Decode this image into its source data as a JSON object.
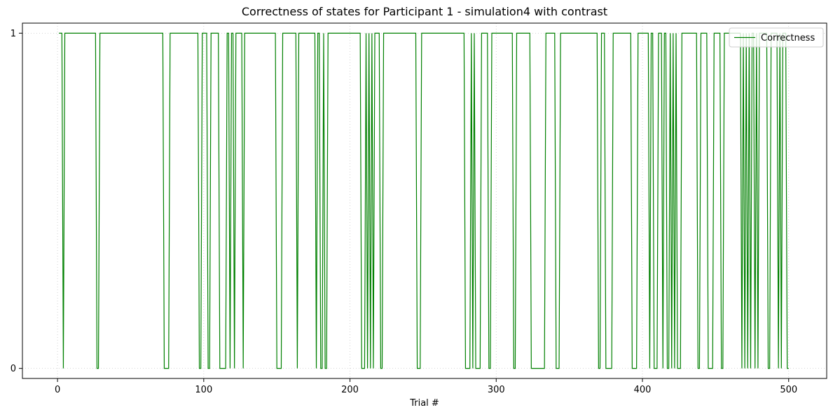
{
  "chart_data": {
    "type": "line",
    "title": "Correctness of states for Participant 1 - simulation4 with contrast",
    "xlabel": "Trial #",
    "ylabel": "",
    "xlim": [
      -24,
      526
    ],
    "ylim": [
      -0.03,
      1.03
    ],
    "x_ticks": [
      0,
      100,
      200,
      300,
      400,
      500
    ],
    "y_ticks": [
      0,
      1
    ],
    "grid": true,
    "grid_style": "dotted",
    "legend_position": "top-right",
    "series": [
      {
        "name": "Correctness",
        "color": "#008000",
        "step_changes": [
          [
            1,
            1
          ],
          [
            4,
            0
          ],
          [
            5,
            1
          ],
          [
            27,
            0
          ],
          [
            29,
            1
          ],
          [
            73,
            0
          ],
          [
            77,
            1
          ],
          [
            97,
            0
          ],
          [
            99,
            1
          ],
          [
            103,
            0
          ],
          [
            105,
            1
          ],
          [
            111,
            0
          ],
          [
            116,
            1
          ],
          [
            118,
            0
          ],
          [
            119,
            1
          ],
          [
            121,
            0
          ],
          [
            122,
            1
          ],
          [
            127,
            0
          ],
          [
            128,
            1
          ],
          [
            150,
            0
          ],
          [
            154,
            1
          ],
          [
            164,
            0
          ],
          [
            165,
            1
          ],
          [
            177,
            0
          ],
          [
            178,
            1
          ],
          [
            180,
            0
          ],
          [
            182,
            1
          ],
          [
            183,
            0
          ],
          [
            185,
            1
          ],
          [
            208,
            0
          ],
          [
            211,
            1
          ],
          [
            212,
            0
          ],
          [
            213,
            1
          ],
          [
            214,
            0
          ],
          [
            215,
            1
          ],
          [
            216,
            0
          ],
          [
            217,
            1
          ],
          [
            221,
            0
          ],
          [
            223,
            1
          ],
          [
            246,
            0
          ],
          [
            249,
            1
          ],
          [
            279,
            0
          ],
          [
            283,
            1
          ],
          [
            284,
            0
          ],
          [
            285,
            1
          ],
          [
            286,
            0
          ],
          [
            290,
            1
          ],
          [
            295,
            0
          ],
          [
            297,
            1
          ],
          [
            312,
            0
          ],
          [
            314,
            1
          ],
          [
            324,
            0
          ],
          [
            334,
            1
          ],
          [
            341,
            0
          ],
          [
            344,
            1
          ],
          [
            370,
            0
          ],
          [
            372,
            1
          ],
          [
            375,
            0
          ],
          [
            380,
            1
          ],
          [
            393,
            0
          ],
          [
            397,
            1
          ],
          [
            405,
            0
          ],
          [
            406,
            1
          ],
          [
            408,
            0
          ],
          [
            411,
            1
          ],
          [
            414,
            0
          ],
          [
            415,
            1
          ],
          [
            417,
            0
          ],
          [
            419,
            1
          ],
          [
            420,
            0
          ],
          [
            421,
            1
          ],
          [
            422,
            0
          ],
          [
            423,
            1
          ],
          [
            424,
            0
          ],
          [
            427,
            1
          ],
          [
            438,
            0
          ],
          [
            440,
            1
          ],
          [
            445,
            0
          ],
          [
            449,
            1
          ],
          [
            454,
            0
          ],
          [
            456,
            1
          ],
          [
            468,
            0
          ],
          [
            469,
            1
          ],
          [
            470,
            0
          ],
          [
            471,
            1
          ],
          [
            472,
            0
          ],
          [
            473,
            1
          ],
          [
            474,
            0
          ],
          [
            475,
            1
          ],
          [
            477,
            0
          ],
          [
            478,
            1
          ],
          [
            479,
            0
          ],
          [
            480,
            1
          ],
          [
            486,
            0
          ],
          [
            488,
            1
          ],
          [
            493,
            0
          ],
          [
            494,
            1
          ],
          [
            495,
            0
          ],
          [
            496,
            1
          ],
          [
            499,
            0
          ],
          [
            500,
            0
          ]
        ]
      }
    ]
  }
}
